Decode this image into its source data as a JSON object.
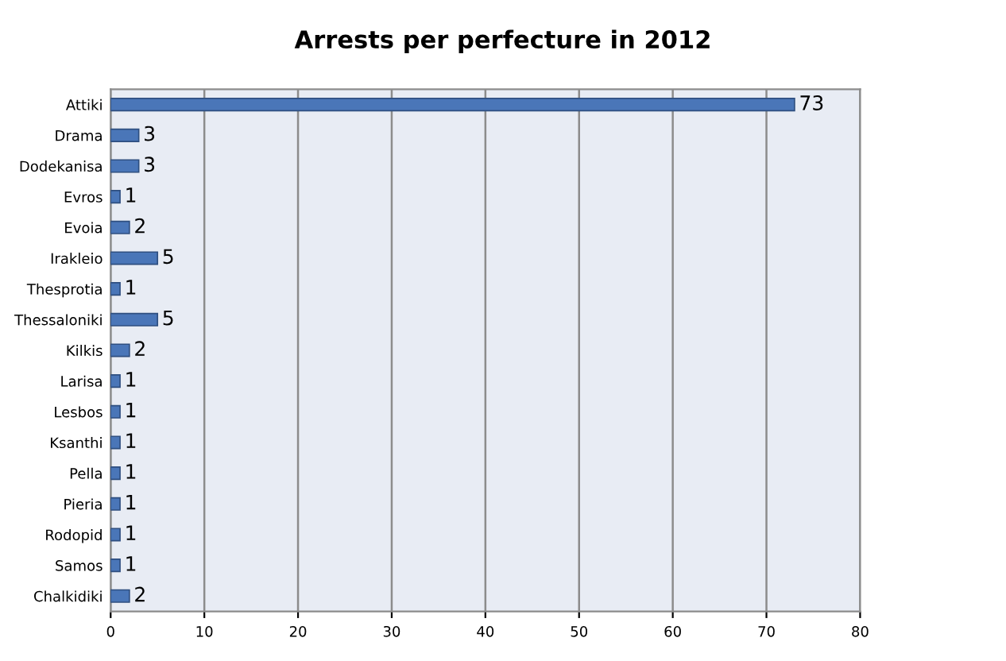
{
  "chart_data": {
    "type": "bar",
    "orientation": "horizontal",
    "title": "Arrests per perfecture in 2012",
    "categories": [
      "Attiki",
      "Drama",
      "Dodekanisa",
      "Evros",
      "Evoia",
      "Irakleio",
      "Thesprotia",
      "Thessaloniki",
      "Kilkis",
      "Larisa",
      "Lesbos",
      "Ksanthi",
      "Pella",
      "Pieria",
      "Rodopid",
      "Samos",
      "Chalkidiki"
    ],
    "values": [
      73,
      3,
      3,
      1,
      2,
      5,
      1,
      5,
      2,
      1,
      1,
      1,
      1,
      1,
      1,
      1,
      2
    ],
    "color": "#4a76b8",
    "xlim": [
      0,
      80
    ],
    "xticks": [
      0,
      10,
      20,
      30,
      40,
      50,
      60,
      70,
      80
    ],
    "grid": "x",
    "data_labels": true,
    "legend": false
  }
}
